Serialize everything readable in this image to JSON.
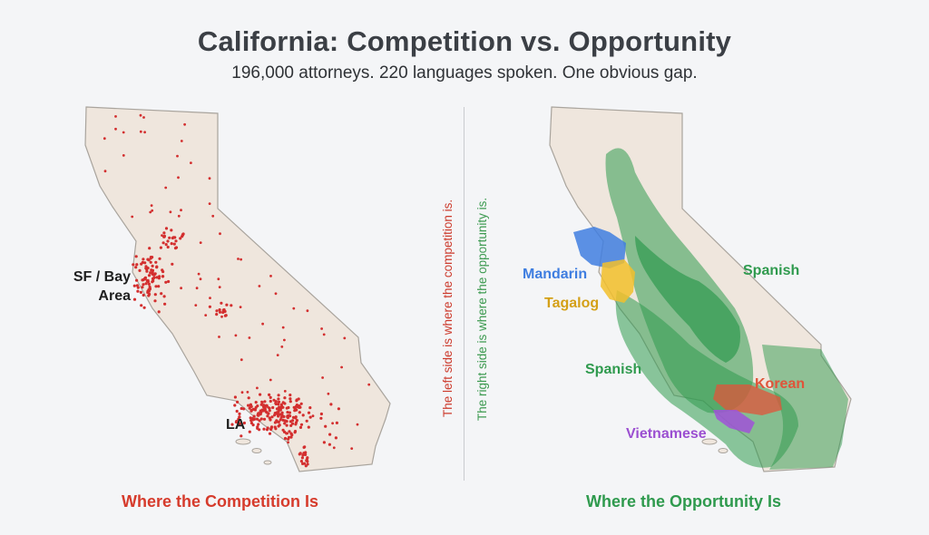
{
  "title": "California: Competition vs. Opportunity",
  "subtitle": "196,000 attorneys. 220 languages spoken. One obvious gap.",
  "left_panel": {
    "caption": "Where the Competition Is",
    "labels": {
      "sf": "SF / Bay\nArea",
      "la": "LA"
    },
    "dot_color": "#d32f2f"
  },
  "right_panel": {
    "caption": "Where the Opportunity Is",
    "labels": {
      "mandarin": "Mandarin",
      "tagalog": "Tagalog",
      "spanish_north": "Spanish",
      "spanish_south": "Spanish",
      "korean": "Korean",
      "vietnamese": "Vietnamese"
    },
    "colors": {
      "spanish": "#2f9a4e",
      "mandarin": "#3f7ee0",
      "tagalog": "#f2c02c",
      "korean": "#e0543a",
      "vietnamese": "#a052d8"
    }
  },
  "divider_notes": {
    "left": "The left side is where the competition is.",
    "right": "The right side is where the opportunity is."
  }
}
